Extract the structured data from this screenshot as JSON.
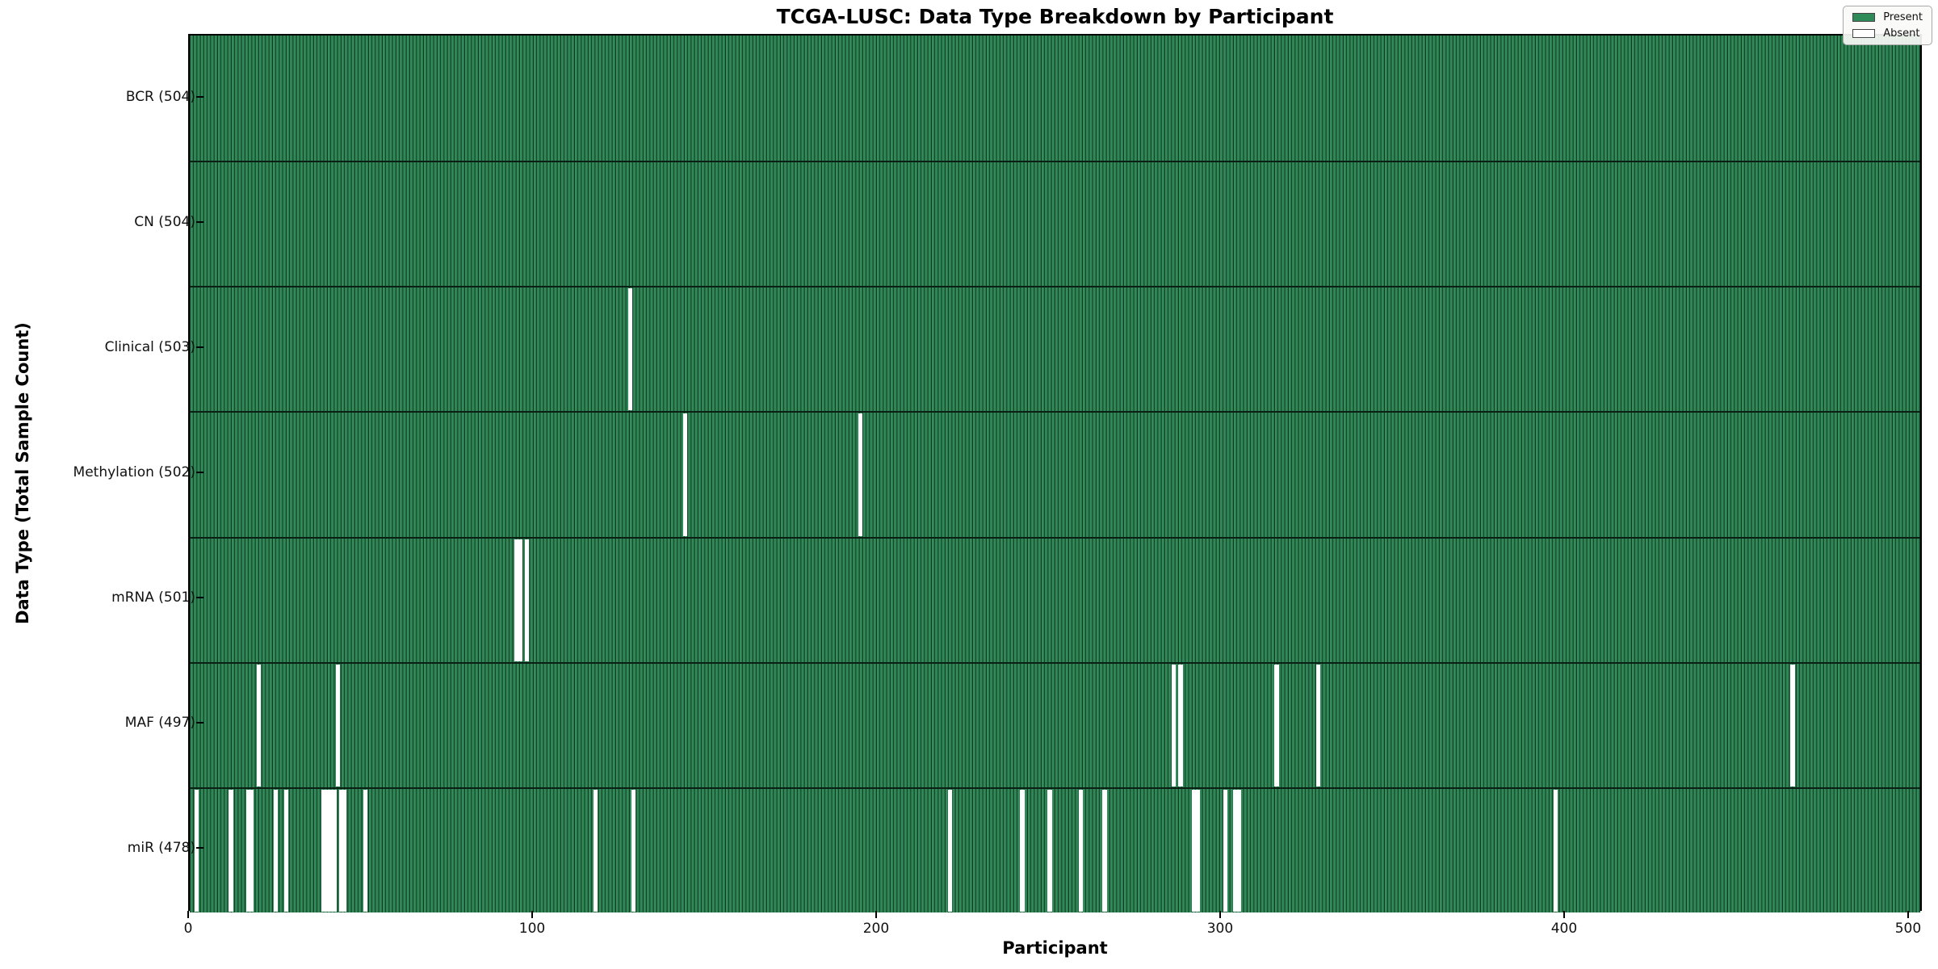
{
  "chart_data": {
    "type": "heatmap",
    "title": "TCGA-LUSC: Data Type Breakdown by Participant",
    "xlabel": "Participant",
    "ylabel": "Data Type (Total Sample Count)",
    "x_ticks": [
      0,
      100,
      200,
      300,
      400,
      500
    ],
    "xlim": [
      0,
      504
    ],
    "n_participants": 504,
    "legend": [
      {
        "label": "Present",
        "color": "#2e8b57"
      },
      {
        "label": "Absent",
        "color": "#ffffff"
      }
    ],
    "colors": {
      "present": "#2e8b57",
      "absent": "#ffffff",
      "bar_edge": "#0b2014"
    },
    "rows": [
      {
        "label": "BCR (504)",
        "name": "BCR",
        "present_count": 504,
        "absent_participants": []
      },
      {
        "label": "CN (504)",
        "name": "CN",
        "present_count": 504,
        "absent_participants": []
      },
      {
        "label": "Clinical (503)",
        "name": "Clinical",
        "present_count": 503,
        "absent_participants": [
          128
        ]
      },
      {
        "label": "Methylation (502)",
        "name": "Methylation",
        "present_count": 502,
        "absent_participants": [
          144,
          195
        ]
      },
      {
        "label": "mRNA (501)",
        "name": "mRNA",
        "present_count": 501,
        "absent_participants": [
          95,
          96,
          98
        ]
      },
      {
        "label": "MAF (497)",
        "name": "MAF",
        "present_count": 497,
        "absent_participants": [
          20,
          43,
          286,
          288,
          316,
          328,
          466
        ]
      },
      {
        "label": "miR (478)",
        "name": "miR",
        "present_count": 478,
        "absent_participants": [
          2,
          12,
          17,
          18,
          25,
          28,
          39,
          40,
          41,
          42,
          44,
          45,
          51,
          118,
          129,
          221,
          242,
          250,
          259,
          266,
          292,
          293,
          301,
          304,
          305,
          397
        ]
      }
    ]
  }
}
